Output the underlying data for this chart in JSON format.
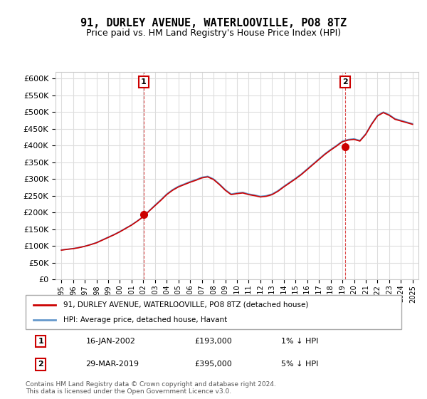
{
  "title": "91, DURLEY AVENUE, WATERLOOVILLE, PO8 8TZ",
  "subtitle": "Price paid vs. HM Land Registry's House Price Index (HPI)",
  "legend_line1": "91, DURLEY AVENUE, WATERLOOVILLE, PO8 8TZ (detached house)",
  "legend_line2": "HPI: Average price, detached house, Havant",
  "annotation1_label": "1",
  "annotation1_date": "16-JAN-2002",
  "annotation1_price": "£193,000",
  "annotation1_hpi": "1% ↓ HPI",
  "annotation2_label": "2",
  "annotation2_date": "29-MAR-2019",
  "annotation2_price": "£395,000",
  "annotation2_hpi": "5% ↓ HPI",
  "footer": "Contains HM Land Registry data © Crown copyright and database right 2024.\nThis data is licensed under the Open Government Licence v3.0.",
  "hpi_color": "#6699cc",
  "price_color": "#cc0000",
  "marker_color": "#cc0000",
  "marker1_year": 2002.04,
  "marker1_value": 193000,
  "marker2_year": 2019.25,
  "marker2_value": 395000,
  "ylim": [
    0,
    620000
  ],
  "yticks": [
    0,
    50000,
    100000,
    150000,
    200000,
    250000,
    300000,
    350000,
    400000,
    450000,
    500000,
    550000,
    600000
  ],
  "xticks": [
    1995,
    1996,
    1997,
    1998,
    1999,
    2000,
    2001,
    2002,
    2003,
    2004,
    2005,
    2006,
    2007,
    2008,
    2009,
    2010,
    2011,
    2012,
    2013,
    2014,
    2015,
    2016,
    2017,
    2018,
    2019,
    2020,
    2021,
    2022,
    2023,
    2024,
    2025
  ],
  "background_color": "#ffffff",
  "grid_color": "#dddddd"
}
